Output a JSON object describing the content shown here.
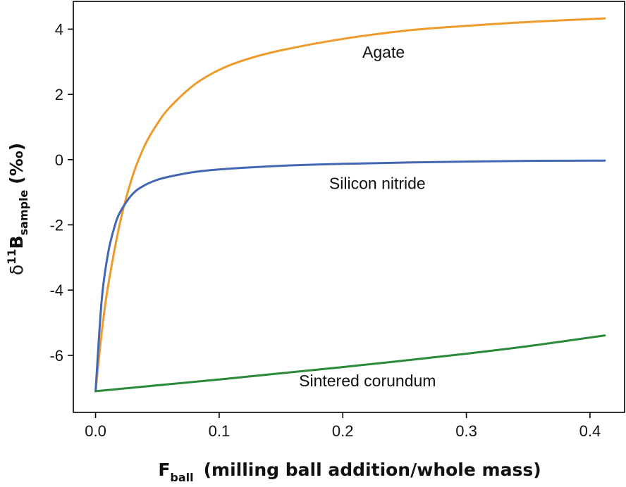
{
  "chart_data": {
    "type": "line",
    "title": "",
    "xlabel": {
      "main": "F",
      "sub": "ball",
      "rest": "(milling ball addition/whole mass)"
    },
    "ylabel": {
      "pre": "δ",
      "sup": "11",
      "main": "B",
      "sub": "sample",
      "rest": "(‰)"
    },
    "xlim": [
      -0.018,
      0.428
    ],
    "ylim": [
      -7.75,
      4.85
    ],
    "xticks": [
      {
        "value": 0.0,
        "label": "0.0"
      },
      {
        "value": 0.1,
        "label": "0.1"
      },
      {
        "value": 0.2,
        "label": "0.2"
      },
      {
        "value": 0.3,
        "label": "0.3"
      },
      {
        "value": 0.4,
        "label": "0.4"
      }
    ],
    "yticks": [
      {
        "value": 4,
        "label": "4"
      },
      {
        "value": 2,
        "label": "2"
      },
      {
        "value": 0,
        "label": "0"
      },
      {
        "value": -2,
        "label": "-2"
      },
      {
        "value": -4,
        "label": "-4"
      },
      {
        "value": -6,
        "label": "-6"
      }
    ],
    "grid": false,
    "series": [
      {
        "name": "Agate",
        "color": "#ee9a2b",
        "x": [
          0.0,
          0.005,
          0.01,
          0.02,
          0.03,
          0.04,
          0.05,
          0.06,
          0.08,
          0.1,
          0.12,
          0.15,
          0.2,
          0.25,
          0.3,
          0.35,
          0.412
        ],
        "y": [
          -7.1,
          -5.3,
          -3.9,
          -1.9,
          -0.5,
          0.45,
          1.1,
          1.6,
          2.3,
          2.75,
          3.05,
          3.35,
          3.7,
          3.95,
          4.1,
          4.22,
          4.33
        ],
        "label_at": {
          "x": 0.233,
          "y": 3.12
        }
      },
      {
        "name": "Silicon nitride",
        "color": "#4467b3",
        "x": [
          0.0,
          0.005,
          0.01,
          0.015,
          0.02,
          0.03,
          0.04,
          0.05,
          0.06,
          0.08,
          0.1,
          0.15,
          0.2,
          0.25,
          0.3,
          0.35,
          0.412
        ],
        "y": [
          -7.1,
          -4.3,
          -2.9,
          -2.1,
          -1.6,
          -1.05,
          -0.78,
          -0.62,
          -0.52,
          -0.38,
          -0.3,
          -0.19,
          -0.13,
          -0.09,
          -0.06,
          -0.04,
          -0.03
        ],
        "label_at": {
          "x": 0.228,
          "y": -0.9
        }
      },
      {
        "name": "Sintered corundum",
        "color": "#2a8a3a",
        "x": [
          0.0,
          0.05,
          0.1,
          0.15,
          0.2,
          0.25,
          0.3,
          0.35,
          0.412
        ],
        "y": [
          -7.1,
          -6.92,
          -6.74,
          -6.55,
          -6.36,
          -6.16,
          -5.95,
          -5.72,
          -5.39
        ],
        "label_at": {
          "x": 0.22,
          "y": -6.95
        }
      }
    ]
  }
}
